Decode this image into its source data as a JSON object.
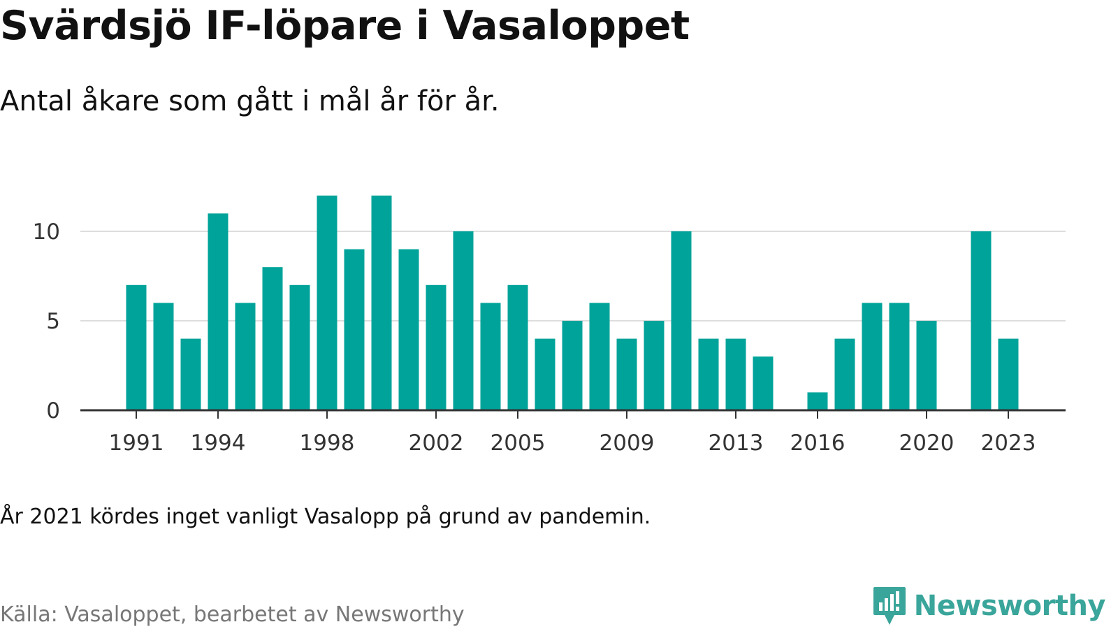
{
  "chart_data": {
    "type": "bar",
    "title": "Svärdsjö IF-löpare i Vasaloppet",
    "subtitle": "Antal åkare som gått i mål år för år.",
    "x": [
      1991,
      1992,
      1993,
      1994,
      1995,
      1996,
      1997,
      1998,
      1999,
      2000,
      2001,
      2002,
      2003,
      2004,
      2005,
      2006,
      2007,
      2008,
      2009,
      2010,
      2011,
      2012,
      2013,
      2014,
      2016,
      2017,
      2018,
      2019,
      2020,
      2022,
      2023
    ],
    "values": [
      7,
      6,
      4,
      11,
      6,
      8,
      7,
      12,
      9,
      12,
      9,
      7,
      10,
      6,
      7,
      4,
      5,
      6,
      4,
      5,
      10,
      4,
      4,
      3,
      1,
      4,
      6,
      6,
      5,
      10,
      4
    ],
    "x_range": [
      1990,
      2025
    ],
    "x_ticks": [
      1991,
      1994,
      1998,
      2002,
      2005,
      2009,
      2013,
      2016,
      2020,
      2023
    ],
    "ylim": [
      0,
      13
    ],
    "y_ticks": [
      0,
      5,
      10
    ],
    "grid": true,
    "bar_color": "#00a39a",
    "xlabel": "",
    "ylabel": ""
  },
  "note": "År 2021 kördes inget vanligt Vasalopp på grund av pandemin.",
  "source": "Källa: Vasaloppet, bearbetet av Newsworthy",
  "brand": {
    "name": "Newsworthy",
    "icon": "newsworthy-logo-icon",
    "color": "#3aa59a"
  }
}
